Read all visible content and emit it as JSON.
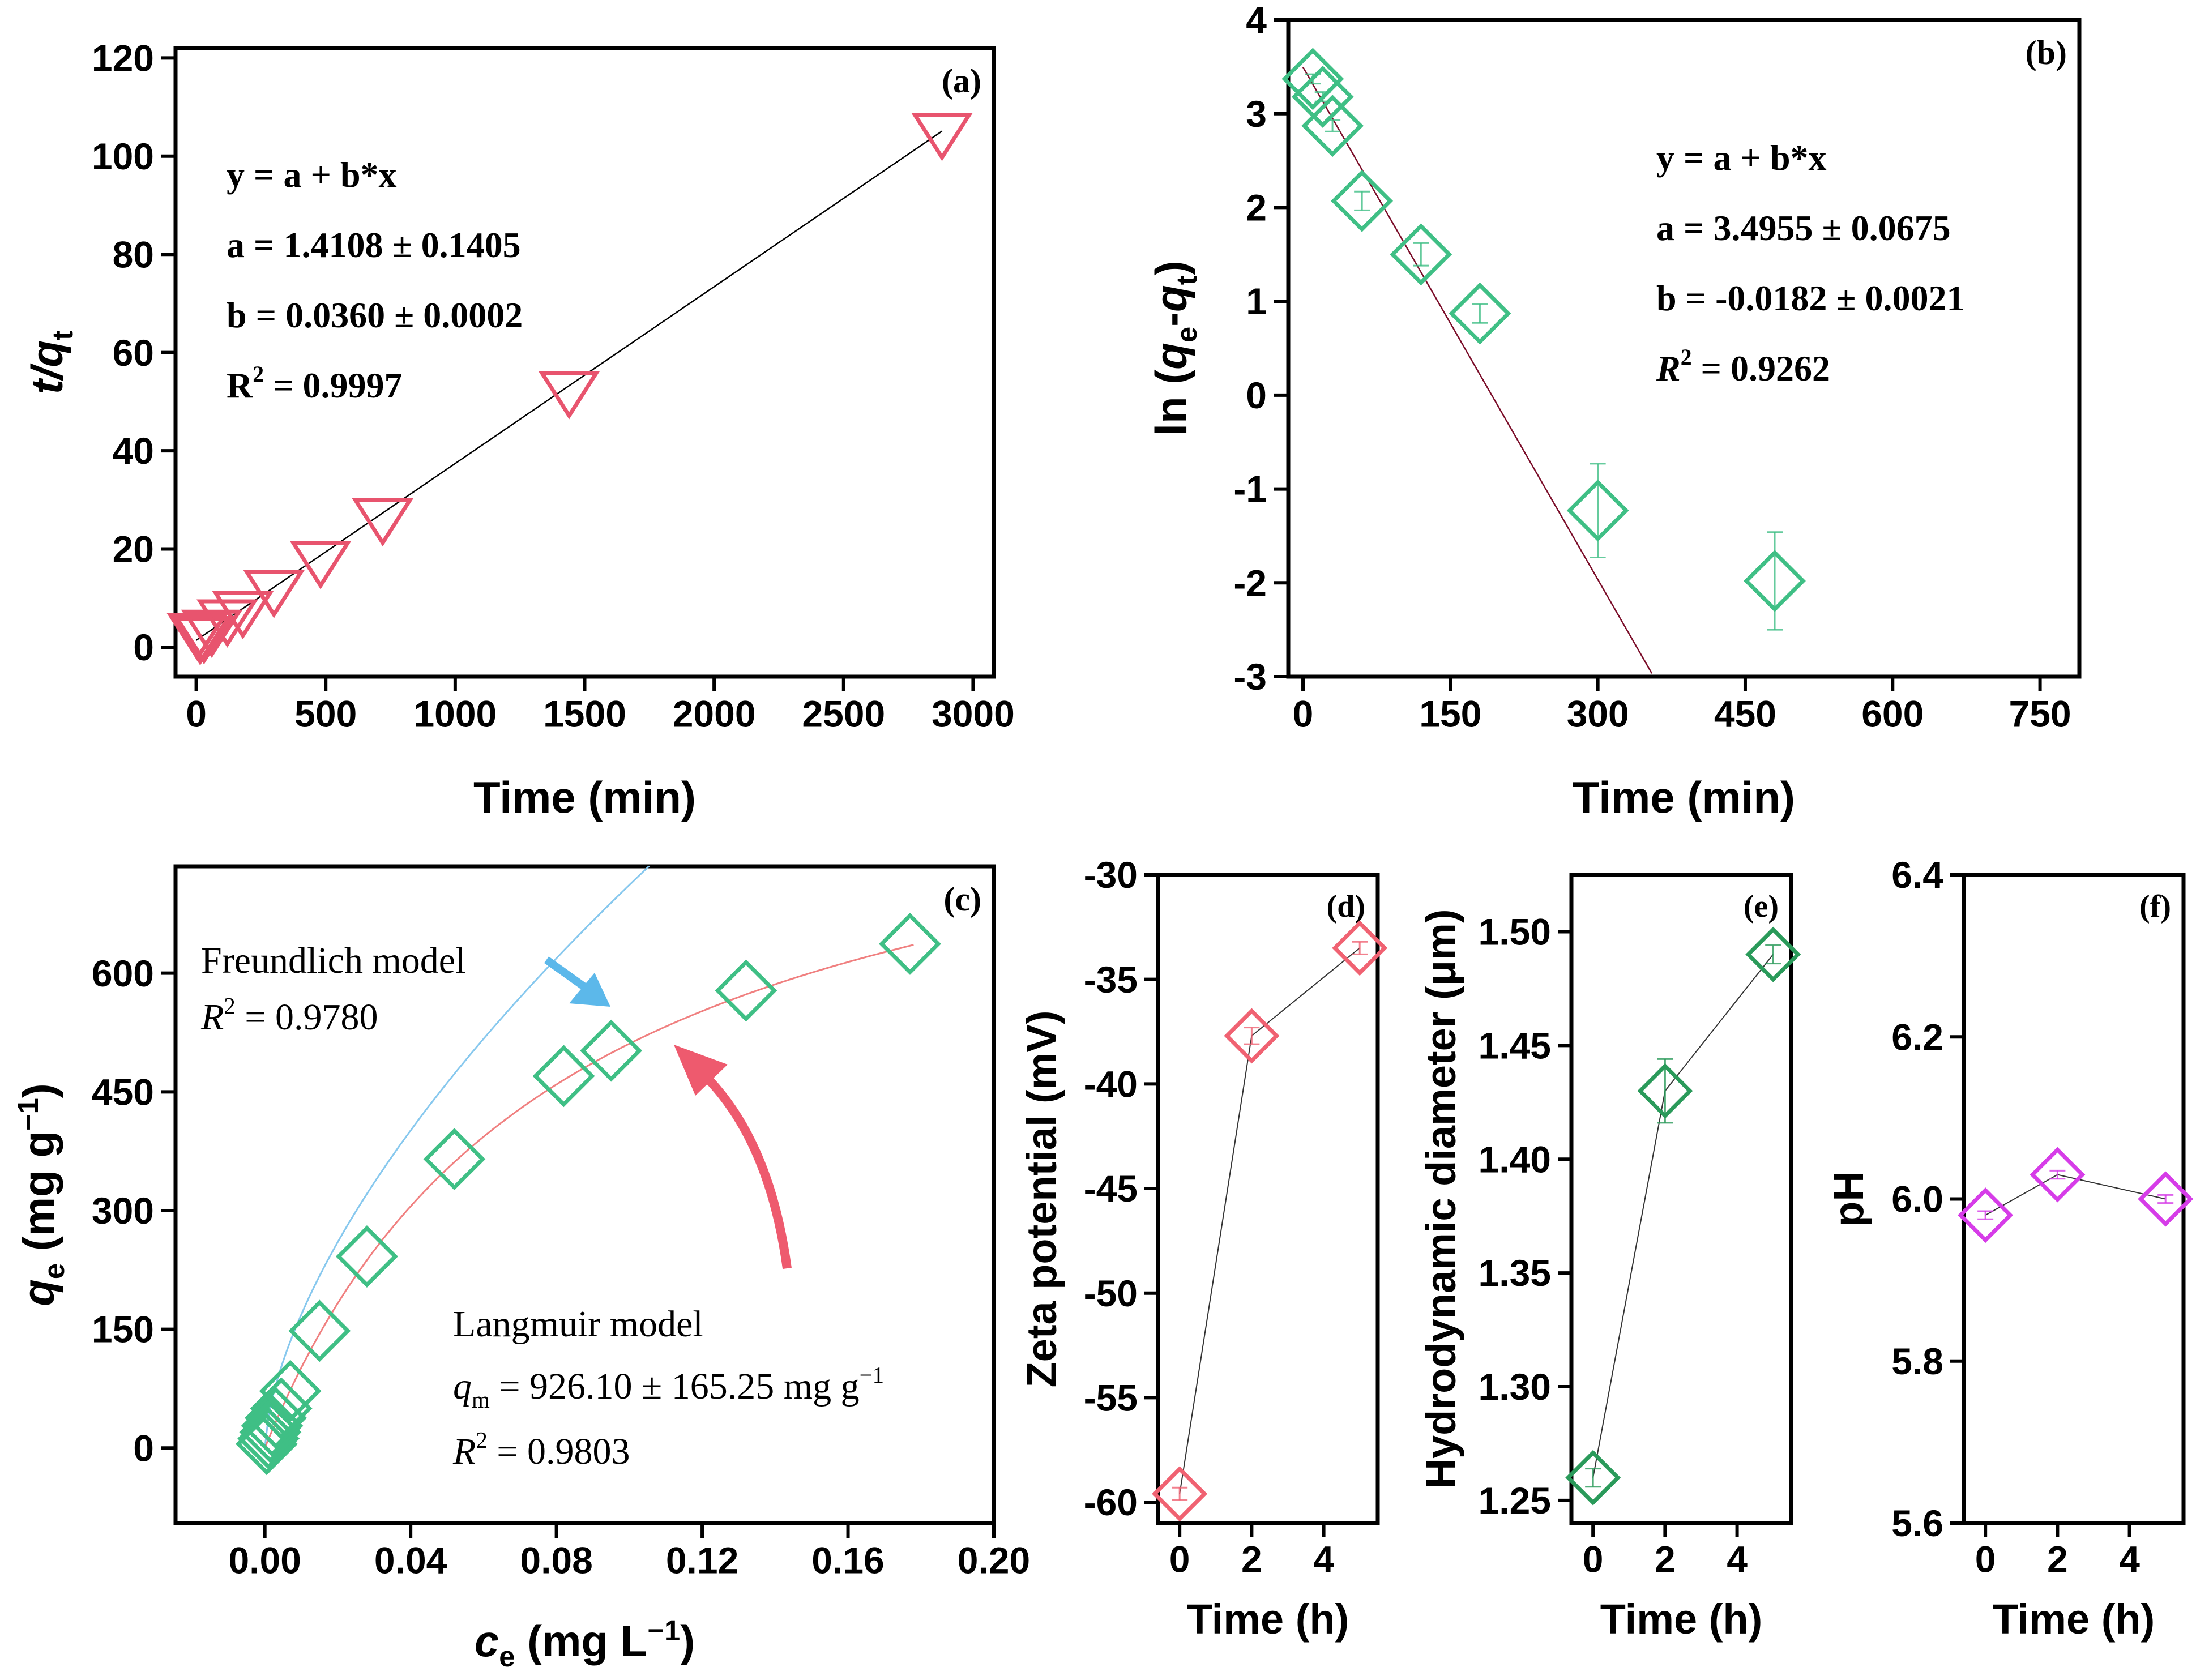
{
  "chart_data": [
    {
      "id": "a",
      "type": "scatter",
      "panel_label": "(a)",
      "xlabel": "Time (min)",
      "ylabel_main": "t/q",
      "ylabel_sub": "t",
      "xlim": [
        -80,
        3080
      ],
      "ylim": [
        -6,
        122
      ],
      "xticks": [
        0,
        500,
        1000,
        1500,
        2000,
        2500,
        3000
      ],
      "yticks": [
        0,
        20,
        40,
        60,
        80,
        100,
        120
      ],
      "xtick_labels": [
        "0",
        "500",
        "1000",
        "1500",
        "2000",
        "2500",
        "3000"
      ],
      "ytick_labels": [
        "0",
        "20",
        "40",
        "60",
        "80",
        "100",
        "120"
      ],
      "marker": "triangle-down",
      "color": "#e8546e",
      "x": [
        5,
        15,
        30,
        60,
        120,
        180,
        300,
        480,
        720,
        1440,
        2880
      ],
      "y": [
        3.1,
        2.3,
        2.5,
        3.8,
        5.9,
        7.6,
        11.9,
        17.8,
        26.5,
        52.4,
        105.0
      ],
      "fit": {
        "a": 1.4108,
        "b": 0.036,
        "x_range": [
          0,
          2880
        ],
        "color": "#000000"
      },
      "annotation": {
        "line1": "y = a + b*x",
        "line2": "a = 1.4108 ± 0.1405",
        "line3": "b = 0.0360 ± 0.0002",
        "r2_label": "R",
        "r2_value": " = 0.9997"
      }
    },
    {
      "id": "b",
      "type": "scatter",
      "panel_label": "(b)",
      "xlabel": "Time (min)",
      "ylabel_pre": "ln (",
      "ylabel_q1": "q",
      "ylabel_s1": "e",
      "ylabel_mid": "-",
      "ylabel_q2": "q",
      "ylabel_s2": "t",
      "ylabel_post": ")",
      "xlim": [
        -15,
        790
      ],
      "ylim": [
        -3,
        4
      ],
      "xticks": [
        0,
        150,
        300,
        450,
        600,
        750
      ],
      "yticks": [
        -3,
        -2,
        -1,
        0,
        1,
        2,
        3,
        4
      ],
      "xtick_labels": [
        "0",
        "150",
        "300",
        "450",
        "600",
        "750"
      ],
      "ytick_labels": [
        "-3",
        "-2",
        "-1",
        "0",
        "1",
        "2",
        "3",
        "4"
      ],
      "marker": "diamond",
      "color": "#3fbf85",
      "x": [
        10,
        20,
        30,
        60,
        120,
        180,
        300,
        480
      ],
      "y": [
        3.37,
        3.18,
        2.87,
        2.07,
        1.5,
        0.87,
        -1.23,
        -1.98
      ],
      "yerr": [
        0.05,
        0.05,
        0.06,
        0.1,
        0.12,
        0.1,
        0.5,
        0.52
      ],
      "fit": {
        "a": 3.4955,
        "b": -0.0182,
        "x_range": [
          0,
          355
        ],
        "color": "#7a0c28"
      },
      "annotation": {
        "line1": "y = a + b*x",
        "line2": "a = 3.4955 ± 0.0675",
        "line3": "b = -0.0182 ± 0.0021",
        "r2_label": "R",
        "r2_value": " = 0.9262"
      }
    },
    {
      "id": "c",
      "type": "scatter",
      "panel_label": "(c)",
      "xlabel_q": "c",
      "xlabel_sub": "e",
      "xlabel_unit": " (mg L",
      "xlabel_sup": "−1",
      "xlabel_close": ")",
      "ylabel_q": "q",
      "ylabel_sub": "e",
      "ylabel_unit": " (mg g",
      "ylabel_sup": "−1",
      "ylabel_close": ")",
      "xlim": [
        -0.0245,
        0.2
      ],
      "ylim": [
        -95,
        735
      ],
      "xticks": [
        0.0,
        0.04,
        0.08,
        0.12,
        0.16,
        0.2
      ],
      "yticks": [
        0,
        150,
        300,
        450,
        600
      ],
      "xtick_labels": [
        "0.00",
        "0.04",
        "0.08",
        "0.12",
        "0.16",
        "0.20"
      ],
      "ytick_labels": [
        "0",
        "150",
        "300",
        "450",
        "600"
      ],
      "marker": "diamond",
      "color": "#3fbf85",
      "x": [
        0.0005,
        0.001,
        0.0015,
        0.002,
        0.003,
        0.0045,
        0.007,
        0.015,
        0.028,
        0.052,
        0.082,
        0.095,
        0.132,
        0.177
      ],
      "y": [
        5,
        12,
        20,
        28,
        38,
        50,
        72,
        148,
        242,
        365,
        470,
        502,
        578,
        637
      ],
      "langmuir": {
        "qm": 926.1,
        "KL": 12.3,
        "color": "#f08080"
      },
      "freundlich": {
        "KF": 3000,
        "n": 1.6,
        "color": "#87c8ee"
      },
      "freundlich_text": "Freundlich model",
      "freundlich_r2_label": "R",
      "freundlich_r2_value": " = 0.9780",
      "langmuir_text": "Langmuir model",
      "langmuir_qm_sym": "q",
      "langmuir_qm_sub": "m",
      "langmuir_qm_value": " = 926.10 ± 165.25 mg g",
      "langmuir_qm_sup": "−1",
      "langmuir_r2_label": "R",
      "langmuir_r2_value": " = 0.9803",
      "arrow_colors": {
        "freundlich": "#5cb8ea",
        "langmuir": "#ee5a6e"
      }
    },
    {
      "id": "d",
      "type": "line",
      "panel_label": "(d)",
      "xlabel": "Time (h)",
      "ylabel": "Zeta potential (mV)",
      "xlim": [
        -0.6,
        5.5
      ],
      "ylim": [
        -61,
        -30
      ],
      "xticks": [
        0,
        2,
        4
      ],
      "yticks": [
        -60,
        -55,
        -50,
        -45,
        -40,
        -35,
        -30
      ],
      "xtick_labels": [
        "0",
        "2",
        "4"
      ],
      "ytick_labels": [
        "-60",
        "-55",
        "-50",
        "-45",
        "-40",
        "-35",
        "-30"
      ],
      "marker": "diamond",
      "color": "#f06272",
      "x": [
        0,
        2,
        5
      ],
      "y": [
        -59.6,
        -37.7,
        -33.5
      ],
      "yerr": [
        0.3,
        0.4,
        0.3
      ]
    },
    {
      "id": "e",
      "type": "line",
      "panel_label": "(e)",
      "xlabel": "Time (h)",
      "ylabel": "Hydrodynamic diameter (μm)",
      "xlim": [
        -0.6,
        5.5
      ],
      "ylim": [
        1.24,
        1.525
      ],
      "xticks": [
        0,
        2,
        4
      ],
      "yticks": [
        1.25,
        1.3,
        1.35,
        1.4,
        1.45,
        1.5
      ],
      "xtick_labels": [
        "0",
        "2",
        "4"
      ],
      "ytick_labels": [
        "1.25",
        "1.30",
        "1.35",
        "1.40",
        "1.45",
        "1.50"
      ],
      "marker": "diamond",
      "color": "#2a9a5a",
      "x": [
        0,
        2,
        5
      ],
      "y": [
        1.26,
        1.43,
        1.49
      ],
      "yerr": [
        0.004,
        0.014,
        0.004
      ]
    },
    {
      "id": "f",
      "type": "line",
      "panel_label": "(f)",
      "xlabel": "Time (h)",
      "ylabel": "pH",
      "xlim": [
        -0.6,
        5.5
      ],
      "ylim": [
        5.6,
        6.4
      ],
      "xticks": [
        0,
        2,
        4
      ],
      "yticks": [
        5.6,
        5.8,
        6.0,
        6.2,
        6.4
      ],
      "xtick_labels": [
        "0",
        "2",
        "4"
      ],
      "ytick_labels": [
        "5.6",
        "5.8",
        "6.0",
        "6.2",
        "6.4"
      ],
      "marker": "diamond",
      "color": "#d63ce8",
      "x": [
        0,
        2,
        5
      ],
      "y": [
        5.98,
        6.03,
        6.0
      ],
      "yerr": [
        0.005,
        0.005,
        0.005
      ]
    }
  ]
}
